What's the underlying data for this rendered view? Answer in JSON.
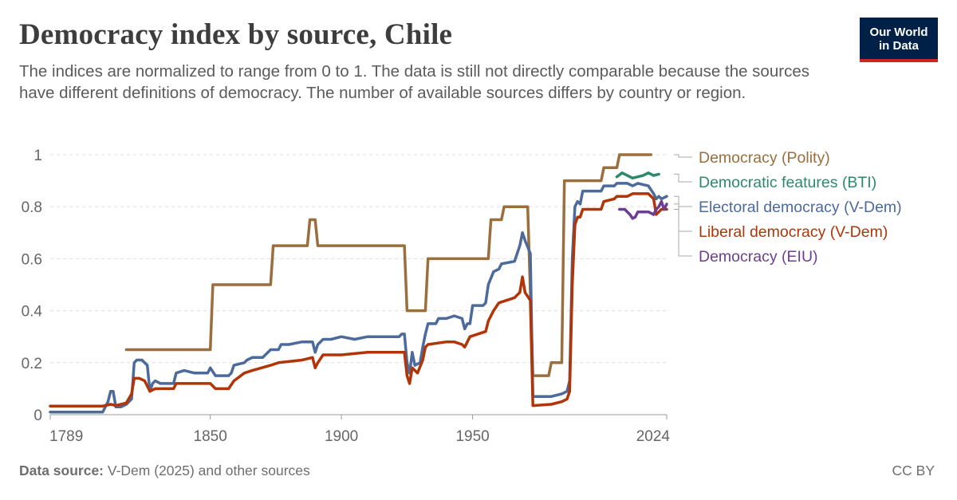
{
  "header": {
    "title": "Democracy index by source, Chile",
    "subtitle": "The indices are normalized to range from 0 to 1. The data is still not directly comparable because the sources have different definitions of democracy. The number of available sources differs by country or region."
  },
  "logo": {
    "line1": "Our World",
    "line2": "in Data"
  },
  "footer": {
    "source_label": "Data source:",
    "source_text": " V-Dem (2025) and other sources",
    "license": "CC BY"
  },
  "chart_data": {
    "type": "line",
    "title": "Democracy index by source, Chile",
    "xlabel": "",
    "ylabel": "",
    "xlim": [
      1789,
      2024
    ],
    "ylim": [
      0,
      1
    ],
    "x_ticks": [
      1789,
      1850,
      1900,
      1950,
      2024
    ],
    "y_ticks": [
      0,
      0.2,
      0.4,
      0.6,
      0.8,
      1
    ],
    "y_tick_labels": [
      "0",
      "0.2",
      "0.4",
      "0.6",
      "0.8",
      "1"
    ],
    "grid": "horizontal dashed",
    "legend": "right, labels at line ends",
    "series": [
      {
        "name": "Democracy (Polity)",
        "color": "#9a6f3d",
        "points": [
          [
            1818,
            0.25
          ],
          [
            1850,
            0.25
          ],
          [
            1851,
            0.5
          ],
          [
            1873,
            0.5
          ],
          [
            1874,
            0.65
          ],
          [
            1887,
            0.65
          ],
          [
            1888,
            0.75
          ],
          [
            1890,
            0.75
          ],
          [
            1891,
            0.65
          ],
          [
            1924,
            0.65
          ],
          [
            1925,
            0.4
          ],
          [
            1932,
            0.4
          ],
          [
            1933,
            0.6
          ],
          [
            1956,
            0.6
          ],
          [
            1957,
            0.75
          ],
          [
            1961,
            0.75
          ],
          [
            1962,
            0.8
          ],
          [
            1969,
            0.8
          ],
          [
            1970,
            0.8
          ],
          [
            1971,
            0.8
          ],
          [
            1973,
            0.15
          ],
          [
            1979,
            0.15
          ],
          [
            1980,
            0.2
          ],
          [
            1984,
            0.2
          ],
          [
            1985,
            0.9
          ],
          [
            1999,
            0.9
          ],
          [
            2000,
            0.95
          ],
          [
            2005,
            0.95
          ],
          [
            2006,
            1
          ],
          [
            2018,
            1
          ]
        ]
      },
      {
        "name": "Democratic features (BTI)",
        "color": "#2d8a6b",
        "points": [
          [
            2005,
            0.915
          ],
          [
            2007,
            0.93
          ],
          [
            2009,
            0.92
          ],
          [
            2011,
            0.91
          ],
          [
            2013,
            0.915
          ],
          [
            2015,
            0.92
          ],
          [
            2017,
            0.93
          ],
          [
            2019,
            0.92
          ],
          [
            2021,
            0.925
          ]
        ]
      },
      {
        "name": "Electoral democracy (V-Dem)",
        "color": "#4c6a9c",
        "points": [
          [
            1789,
            0.01
          ],
          [
            1809,
            0.01
          ],
          [
            1811,
            0.05
          ],
          [
            1812,
            0.09
          ],
          [
            1813,
            0.09
          ],
          [
            1814,
            0.03
          ],
          [
            1816,
            0.03
          ],
          [
            1818,
            0.04
          ],
          [
            1820,
            0.06
          ],
          [
            1821,
            0.2
          ],
          [
            1822,
            0.21
          ],
          [
            1824,
            0.21
          ],
          [
            1826,
            0.19
          ],
          [
            1827,
            0.09
          ],
          [
            1828,
            0.12
          ],
          [
            1829,
            0.13
          ],
          [
            1831,
            0.12
          ],
          [
            1836,
            0.12
          ],
          [
            1837,
            0.16
          ],
          [
            1840,
            0.17
          ],
          [
            1844,
            0.16
          ],
          [
            1849,
            0.16
          ],
          [
            1850,
            0.18
          ],
          [
            1852,
            0.15
          ],
          [
            1857,
            0.15
          ],
          [
            1858,
            0.16
          ],
          [
            1859,
            0.19
          ],
          [
            1863,
            0.2
          ],
          [
            1864,
            0.21
          ],
          [
            1866,
            0.22
          ],
          [
            1870,
            0.22
          ],
          [
            1873,
            0.25
          ],
          [
            1876,
            0.25
          ],
          [
            1877,
            0.27
          ],
          [
            1880,
            0.27
          ],
          [
            1885,
            0.28
          ],
          [
            1889,
            0.28
          ],
          [
            1890,
            0.24
          ],
          [
            1891,
            0.27
          ],
          [
            1893,
            0.29
          ],
          [
            1896,
            0.29
          ],
          [
            1900,
            0.3
          ],
          [
            1905,
            0.29
          ],
          [
            1910,
            0.3
          ],
          [
            1915,
            0.3
          ],
          [
            1919,
            0.3
          ],
          [
            1922,
            0.3
          ],
          [
            1923,
            0.31
          ],
          [
            1924,
            0.31
          ],
          [
            1925,
            0.2
          ],
          [
            1926,
            0.16
          ],
          [
            1927,
            0.24
          ],
          [
            1928,
            0.19
          ],
          [
            1930,
            0.2
          ],
          [
            1931,
            0.26
          ],
          [
            1932,
            0.31
          ],
          [
            1933,
            0.35
          ],
          [
            1936,
            0.35
          ],
          [
            1937,
            0.37
          ],
          [
            1940,
            0.37
          ],
          [
            1943,
            0.38
          ],
          [
            1946,
            0.37
          ],
          [
            1947,
            0.33
          ],
          [
            1948,
            0.35
          ],
          [
            1949,
            0.35
          ],
          [
            1950,
            0.42
          ],
          [
            1954,
            0.42
          ],
          [
            1955,
            0.43
          ],
          [
            1956,
            0.5
          ],
          [
            1958,
            0.55
          ],
          [
            1960,
            0.56
          ],
          [
            1961,
            0.58
          ],
          [
            1966,
            0.59
          ],
          [
            1968,
            0.65
          ],
          [
            1969,
            0.7
          ],
          [
            1970,
            0.67
          ],
          [
            1972,
            0.62
          ],
          [
            1973,
            0.07
          ],
          [
            1980,
            0.07
          ],
          [
            1984,
            0.08
          ],
          [
            1986,
            0.09
          ],
          [
            1987,
            0.13
          ],
          [
            1988,
            0.6
          ],
          [
            1989,
            0.8
          ],
          [
            1990,
            0.82
          ],
          [
            1991,
            0.81
          ],
          [
            1992,
            0.86
          ],
          [
            1999,
            0.86
          ],
          [
            2000,
            0.88
          ],
          [
            2004,
            0.88
          ],
          [
            2005,
            0.89
          ],
          [
            2009,
            0.89
          ],
          [
            2011,
            0.88
          ],
          [
            2013,
            0.89
          ],
          [
            2017,
            0.88
          ],
          [
            2019,
            0.85
          ],
          [
            2020,
            0.83
          ],
          [
            2021,
            0.84
          ],
          [
            2022,
            0.83
          ],
          [
            2024,
            0.84
          ]
        ]
      },
      {
        "name": "Liberal democracy (V-Dem)",
        "color": "#b13507",
        "points": [
          [
            1789,
            0.033
          ],
          [
            1809,
            0.033
          ],
          [
            1812,
            0.04
          ],
          [
            1814,
            0.035
          ],
          [
            1818,
            0.045
          ],
          [
            1820,
            0.08
          ],
          [
            1821,
            0.14
          ],
          [
            1823,
            0.14
          ],
          [
            1825,
            0.13
          ],
          [
            1827,
            0.09
          ],
          [
            1829,
            0.1
          ],
          [
            1836,
            0.1
          ],
          [
            1837,
            0.12
          ],
          [
            1850,
            0.12
          ],
          [
            1852,
            0.1
          ],
          [
            1857,
            0.1
          ],
          [
            1859,
            0.13
          ],
          [
            1863,
            0.16
          ],
          [
            1866,
            0.17
          ],
          [
            1873,
            0.19
          ],
          [
            1876,
            0.2
          ],
          [
            1885,
            0.21
          ],
          [
            1889,
            0.22
          ],
          [
            1890,
            0.18
          ],
          [
            1891,
            0.2
          ],
          [
            1893,
            0.23
          ],
          [
            1900,
            0.23
          ],
          [
            1910,
            0.24
          ],
          [
            1920,
            0.24
          ],
          [
            1923,
            0.24
          ],
          [
            1924,
            0.24
          ],
          [
            1925,
            0.15
          ],
          [
            1926,
            0.12
          ],
          [
            1927,
            0.18
          ],
          [
            1929,
            0.16
          ],
          [
            1931,
            0.21
          ],
          [
            1932,
            0.26
          ],
          [
            1933,
            0.27
          ],
          [
            1940,
            0.28
          ],
          [
            1943,
            0.28
          ],
          [
            1946,
            0.27
          ],
          [
            1947,
            0.26
          ],
          [
            1949,
            0.3
          ],
          [
            1955,
            0.32
          ],
          [
            1956,
            0.36
          ],
          [
            1958,
            0.4
          ],
          [
            1960,
            0.43
          ],
          [
            1963,
            0.44
          ],
          [
            1966,
            0.45
          ],
          [
            1968,
            0.47
          ],
          [
            1969,
            0.53
          ],
          [
            1970,
            0.47
          ],
          [
            1972,
            0.44
          ],
          [
            1973,
            0.035
          ],
          [
            1980,
            0.04
          ],
          [
            1984,
            0.05
          ],
          [
            1986,
            0.06
          ],
          [
            1987,
            0.09
          ],
          [
            1988,
            0.5
          ],
          [
            1989,
            0.73
          ],
          [
            1990,
            0.76
          ],
          [
            1991,
            0.76
          ],
          [
            1992,
            0.79
          ],
          [
            1999,
            0.79
          ],
          [
            2000,
            0.82
          ],
          [
            2004,
            0.83
          ],
          [
            2005,
            0.84
          ],
          [
            2009,
            0.84
          ],
          [
            2011,
            0.85
          ],
          [
            2015,
            0.85
          ],
          [
            2017,
            0.85
          ],
          [
            2019,
            0.83
          ],
          [
            2020,
            0.77
          ],
          [
            2021,
            0.78
          ],
          [
            2022,
            0.79
          ],
          [
            2024,
            0.79
          ]
        ]
      },
      {
        "name": "Democracy (EIU)",
        "color": "#6d3e91",
        "points": [
          [
            2006,
            0.79
          ],
          [
            2008,
            0.79
          ],
          [
            2010,
            0.77
          ],
          [
            2011,
            0.755
          ],
          [
            2012,
            0.76
          ],
          [
            2013,
            0.78
          ],
          [
            2015,
            0.78
          ],
          [
            2017,
            0.78
          ],
          [
            2019,
            0.77
          ],
          [
            2020,
            0.79
          ],
          [
            2021,
            0.8
          ],
          [
            2022,
            0.82
          ],
          [
            2023,
            0.79
          ],
          [
            2024,
            0.81
          ]
        ]
      }
    ]
  }
}
